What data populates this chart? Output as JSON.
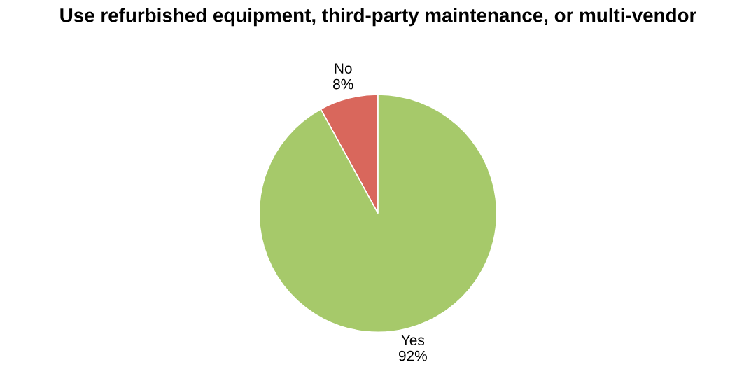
{
  "chart_data": {
    "type": "pie",
    "title": "Use refurbished equipment, third-party maintenance, or multi-vendor",
    "categories": [
      "No",
      "Yes"
    ],
    "values": [
      8,
      92
    ],
    "colors": [
      "#d9675c",
      "#a6c96a"
    ],
    "value_labels": [
      "8%",
      "92%"
    ],
    "legend": false
  }
}
